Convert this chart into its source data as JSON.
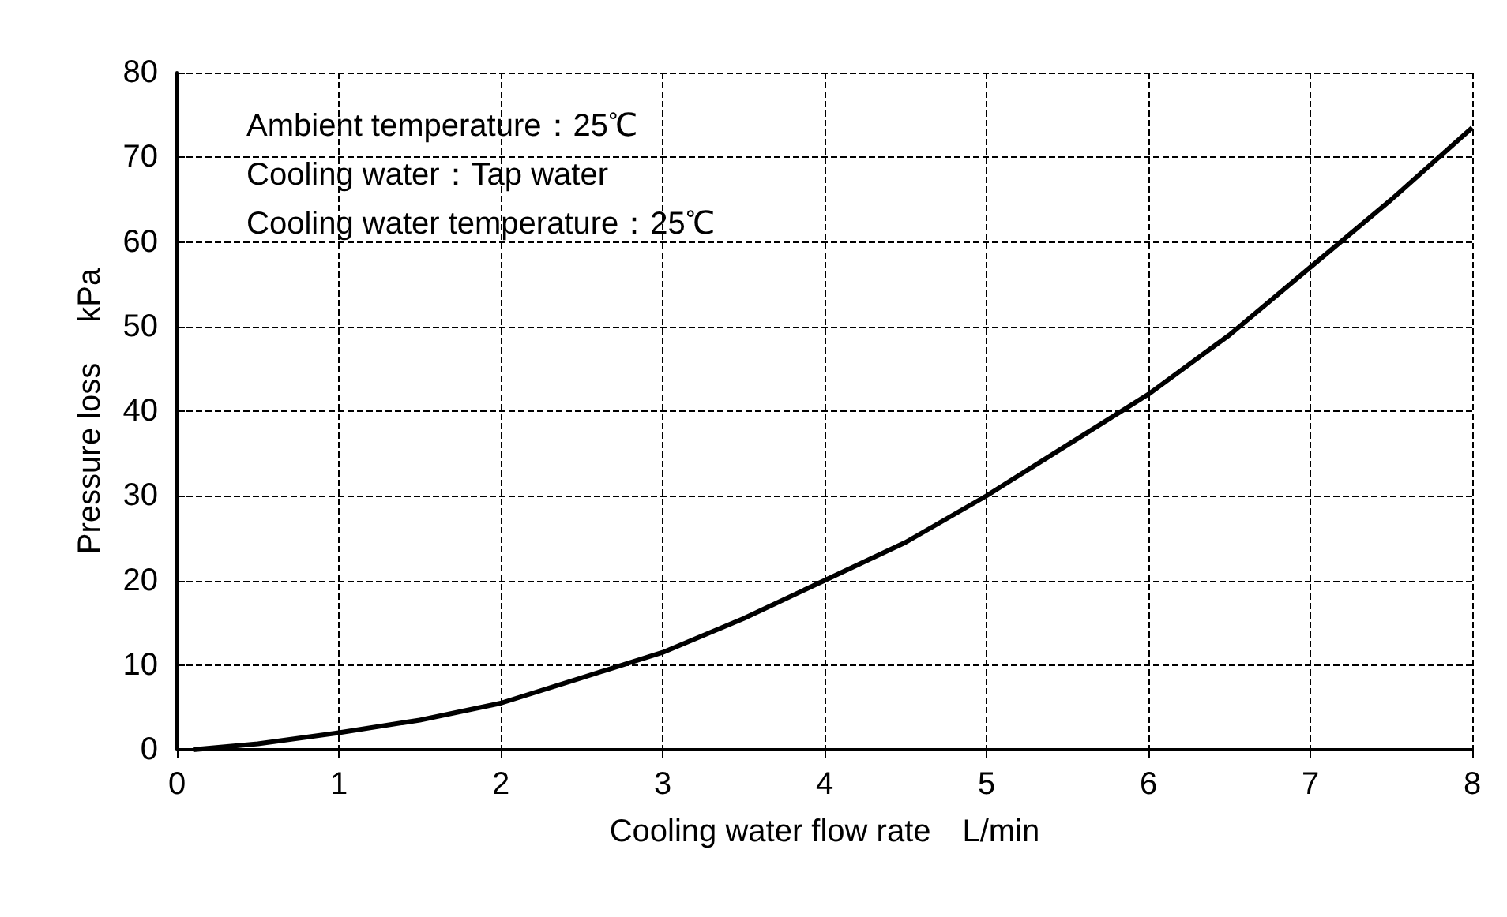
{
  "chart_data": {
    "type": "line",
    "xlabel": "Cooling water flow rate　L/min",
    "ylabel": "Pressure loss　 kPa",
    "annotations": [
      "Ambient temperature：25℃",
      "Cooling water：Tap water",
      "Cooling water temperature：25℃"
    ],
    "series": [
      {
        "color": "#000000",
        "x": [
          0.1,
          0.5,
          1,
          1.5,
          2,
          2.5,
          3,
          3.5,
          4,
          4.5,
          5,
          5.5,
          6,
          6.5,
          7,
          7.5,
          8
        ],
        "values": [
          0,
          0.7,
          2,
          3.5,
          5.5,
          8.5,
          11.5,
          15.5,
          20,
          24.5,
          30,
          36,
          42,
          49,
          57,
          65,
          73.5
        ]
      }
    ],
    "xlim": [
      0,
      8
    ],
    "xticks": [
      0,
      1,
      2,
      3,
      4,
      5,
      6,
      7,
      8
    ],
    "ylim": [
      0,
      80
    ],
    "yticks": [
      0,
      10,
      20,
      30,
      40,
      50,
      60,
      70,
      80
    ],
    "grid": true,
    "marker": "none",
    "line_style": "solid"
  }
}
